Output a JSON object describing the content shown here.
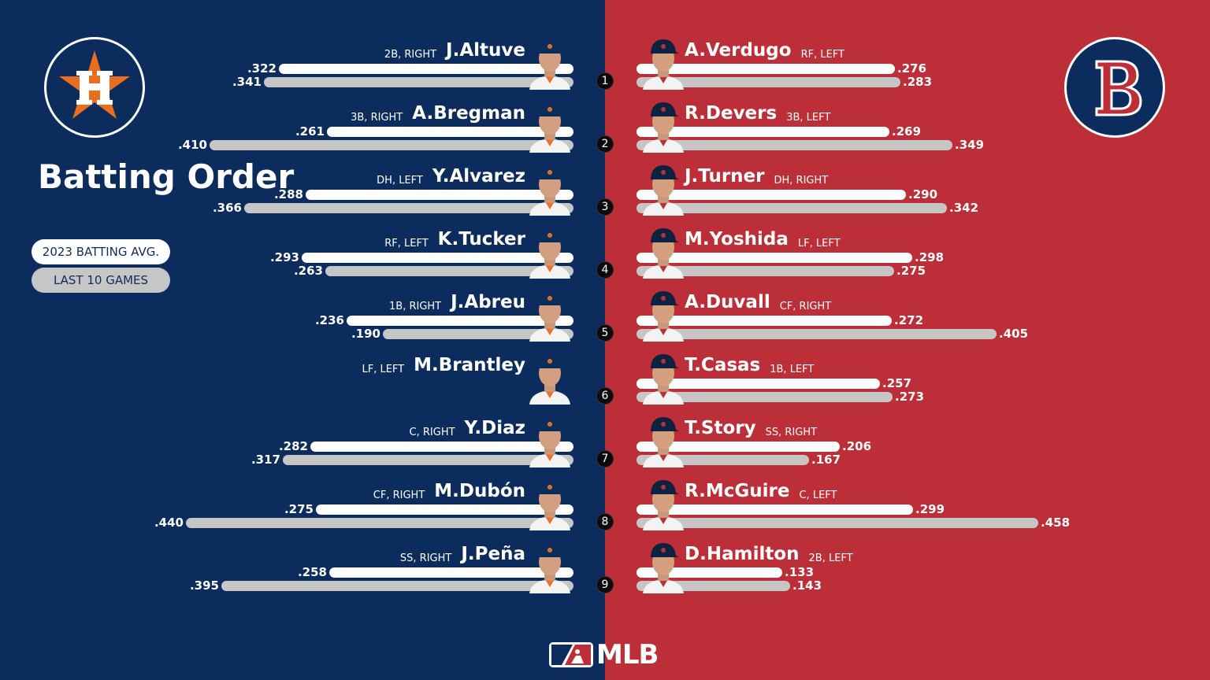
{
  "title": "Batting Order",
  "legend": {
    "avg_label": "2023 BATTING AVG.",
    "l10_label": "LAST 10 GAMES"
  },
  "brand": "MLB",
  "colors": {
    "astros_navy": "#0c2c5e",
    "astros_orange": "#eb6e1f",
    "redsox_red": "#bd2f38",
    "redsox_navy": "#0c2340",
    "avg_bar": "#ffffff",
    "l10_bar": "#c6c6c6"
  },
  "chart_data": {
    "type": "bar",
    "orientation": "horizontal",
    "xlim": [
      0,
      0.5
    ],
    "series_keys": [
      "2023 BATTING AVG.",
      "LAST 10 GAMES"
    ],
    "teams": [
      {
        "side": "left",
        "logo": "astros-h-star-logo",
        "players": [
          {
            "order": "1",
            "name": "J.Altuve",
            "pos": "2B, RIGHT",
            "avg": 0.322,
            "avg_label": ".322",
            "l10": 0.341,
            "l10_label": ".341"
          },
          {
            "order": "2",
            "name": "A.Bregman",
            "pos": "3B, RIGHT",
            "avg": 0.261,
            "avg_label": ".261",
            "l10": 0.41,
            "l10_label": ".410"
          },
          {
            "order": "3",
            "name": "Y.Alvarez",
            "pos": "DH, LEFT",
            "avg": 0.288,
            "avg_label": ".288",
            "l10": 0.366,
            "l10_label": ".366"
          },
          {
            "order": "4",
            "name": "K.Tucker",
            "pos": "RF, LEFT",
            "avg": 0.293,
            "avg_label": ".293",
            "l10": 0.263,
            "l10_label": ".263"
          },
          {
            "order": "5",
            "name": "J.Abreu",
            "pos": "1B, RIGHT",
            "avg": 0.236,
            "avg_label": ".236",
            "l10": 0.19,
            "l10_label": ".190"
          },
          {
            "order": "6",
            "name": "M.Brantley",
            "pos": "LF, LEFT",
            "avg": null,
            "avg_label": "",
            "l10": null,
            "l10_label": ""
          },
          {
            "order": "7",
            "name": "Y.Diaz",
            "pos": "C, RIGHT",
            "avg": 0.282,
            "avg_label": ".282",
            "l10": 0.317,
            "l10_label": ".317"
          },
          {
            "order": "8",
            "name": "M.Dubón",
            "pos": "CF, RIGHT",
            "avg": 0.275,
            "avg_label": ".275",
            "l10": 0.44,
            "l10_label": ".440"
          },
          {
            "order": "9",
            "name": "J.Peña",
            "pos": "SS, RIGHT",
            "avg": 0.258,
            "avg_label": ".258",
            "l10": 0.395,
            "l10_label": ".395"
          }
        ]
      },
      {
        "side": "right",
        "logo": "red-sox-b-logo",
        "players": [
          {
            "order": "1",
            "name": "A.Verdugo",
            "pos": "RF, LEFT",
            "avg": 0.276,
            "avg_label": ".276",
            "l10": 0.283,
            "l10_label": ".283"
          },
          {
            "order": "2",
            "name": "R.Devers",
            "pos": "3B, LEFT",
            "avg": 0.269,
            "avg_label": ".269",
            "l10": 0.349,
            "l10_label": ".349"
          },
          {
            "order": "3",
            "name": "J.Turner",
            "pos": "DH, RIGHT",
            "avg": 0.29,
            "avg_label": ".290",
            "l10": 0.342,
            "l10_label": ".342"
          },
          {
            "order": "4",
            "name": "M.Yoshida",
            "pos": "LF, LEFT",
            "avg": 0.298,
            "avg_label": ".298",
            "l10": 0.275,
            "l10_label": ".275"
          },
          {
            "order": "5",
            "name": "A.Duvall",
            "pos": "CF, RIGHT",
            "avg": 0.272,
            "avg_label": ".272",
            "l10": 0.405,
            "l10_label": ".405"
          },
          {
            "order": "6",
            "name": "T.Casas",
            "pos": "1B, LEFT",
            "avg": 0.257,
            "avg_label": ".257",
            "l10": 0.273,
            "l10_label": ".273"
          },
          {
            "order": "7",
            "name": "T.Story",
            "pos": "SS, RIGHT",
            "avg": 0.206,
            "avg_label": ".206",
            "l10": 0.167,
            "l10_label": ".167"
          },
          {
            "order": "8",
            "name": "R.McGuire",
            "pos": "C, LEFT",
            "avg": 0.299,
            "avg_label": ".299",
            "l10": 0.458,
            "l10_label": ".458"
          },
          {
            "order": "9",
            "name": "D.Hamilton",
            "pos": "2B, LEFT",
            "avg": 0.133,
            "avg_label": ".133",
            "l10": 0.143,
            "l10_label": ".143"
          }
        ]
      }
    ]
  }
}
